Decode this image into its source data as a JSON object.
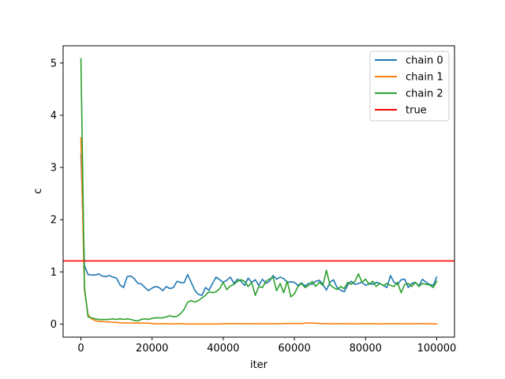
{
  "chart_data": {
    "type": "line",
    "xlabel": "iter",
    "ylabel": "c",
    "xlim": [
      -5000,
      105000
    ],
    "ylim": [
      -0.25,
      5.33
    ],
    "x_ticks": [
      0,
      20000,
      40000,
      60000,
      80000,
      100000
    ],
    "x_tick_labels": [
      "0",
      "20000",
      "40000",
      "60000",
      "80000",
      "100000"
    ],
    "y_ticks": [
      0,
      1,
      2,
      3,
      4,
      5
    ],
    "y_tick_labels": [
      "0",
      "1",
      "2",
      "3",
      "4",
      "5"
    ],
    "grid": false,
    "legend": {
      "position": "upper-right"
    },
    "x": [
      0,
      1000,
      2000,
      3000,
      4000,
      5000,
      6000,
      7000,
      8000,
      9000,
      10000,
      11000,
      12000,
      13000,
      14000,
      15000,
      16000,
      17000,
      18000,
      19000,
      20000,
      21000,
      22000,
      23000,
      24000,
      25000,
      26000,
      27000,
      28000,
      29000,
      30000,
      31000,
      32000,
      33000,
      34000,
      35000,
      36000,
      37000,
      38000,
      39000,
      40000,
      41000,
      42000,
      43000,
      44000,
      45000,
      46000,
      47000,
      48000,
      49000,
      50000,
      51000,
      52000,
      53000,
      54000,
      55000,
      56000,
      57000,
      58000,
      59000,
      60000,
      61000,
      62000,
      63000,
      64000,
      65000,
      66000,
      67000,
      68000,
      69000,
      70000,
      71000,
      72000,
      73000,
      74000,
      75000,
      76000,
      77000,
      78000,
      79000,
      80000,
      81000,
      82000,
      83000,
      84000,
      85000,
      86000,
      87000,
      88000,
      89000,
      90000,
      91000,
      92000,
      93000,
      94000,
      95000,
      96000,
      97000,
      98000,
      99000,
      100000
    ],
    "series": [
      {
        "name": "chain 0",
        "color": "#1f77b4",
        "values": [
          3.25,
          1.12,
          0.95,
          0.94,
          0.94,
          0.96,
          0.92,
          0.91,
          0.93,
          0.9,
          0.88,
          0.75,
          0.7,
          0.91,
          0.92,
          0.87,
          0.78,
          0.77,
          0.7,
          0.64,
          0.69,
          0.72,
          0.7,
          0.64,
          0.72,
          0.68,
          0.7,
          0.82,
          0.8,
          0.79,
          0.95,
          0.8,
          0.65,
          0.57,
          0.55,
          0.7,
          0.65,
          0.78,
          0.9,
          0.85,
          0.8,
          0.84,
          0.9,
          0.78,
          0.86,
          0.82,
          0.74,
          0.88,
          0.8,
          0.85,
          0.74,
          0.86,
          0.78,
          0.82,
          0.93,
          0.86,
          0.9,
          0.87,
          0.8,
          0.81,
          0.8,
          0.74,
          0.79,
          0.73,
          0.78,
          0.76,
          0.82,
          0.84,
          0.76,
          0.65,
          0.8,
          0.85,
          0.7,
          0.65,
          0.62,
          0.75,
          0.82,
          0.76,
          0.78,
          0.8,
          0.74,
          0.78,
          0.76,
          0.8,
          0.78,
          0.74,
          0.7,
          0.93,
          0.8,
          0.76,
          0.85,
          0.86,
          0.7,
          0.78,
          0.8,
          0.73,
          0.86,
          0.8,
          0.76,
          0.74,
          0.9
        ]
      },
      {
        "name": "chain 1",
        "color": "#ff7f0e",
        "values": [
          3.57,
          0.65,
          0.18,
          0.1,
          0.07,
          0.05,
          0.05,
          0.045,
          0.04,
          0.035,
          0.03,
          0.025,
          0.022,
          0.025,
          0.022,
          0.02,
          0.02,
          0.02,
          0.018,
          0.02,
          0.01,
          0.005,
          0.005,
          0.006,
          0.008,
          0.005,
          0.005,
          0.006,
          0.008,
          0.004,
          0.002,
          0.002,
          0.002,
          0.003,
          0.002,
          0.002,
          0.002,
          0.002,
          0.003,
          0.004,
          0.006,
          0.008,
          0.01,
          0.008,
          0.008,
          0.006,
          0.008,
          0.008,
          0.006,
          0.006,
          0.006,
          0.005,
          0.006,
          0.006,
          0.006,
          0.006,
          0.008,
          0.01,
          0.012,
          0.012,
          0.012,
          0.012,
          0.01,
          0.02,
          0.022,
          0.02,
          0.018,
          0.012,
          0.01,
          0.008,
          0.006,
          0.004,
          0.006,
          0.008,
          0.008,
          0.006,
          0.005,
          0.005,
          0.006,
          0.008,
          0.006,
          0.006,
          0.008,
          0.006,
          0.004,
          0.004,
          0.006,
          0.008,
          0.008,
          0.006,
          0.005,
          0.006,
          0.006,
          0.006,
          0.006,
          0.008,
          0.008,
          0.006,
          0.006,
          0.005,
          0.004
        ]
      },
      {
        "name": "chain 2",
        "color": "#2ca02c",
        "values": [
          5.08,
          0.7,
          0.14,
          0.12,
          0.1,
          0.09,
          0.09,
          0.09,
          0.09,
          0.1,
          0.09,
          0.1,
          0.09,
          0.1,
          0.09,
          0.07,
          0.06,
          0.09,
          0.1,
          0.09,
          0.11,
          0.12,
          0.12,
          0.12,
          0.14,
          0.16,
          0.14,
          0.15,
          0.2,
          0.28,
          0.42,
          0.45,
          0.42,
          0.45,
          0.5,
          0.55,
          0.62,
          0.6,
          0.62,
          0.68,
          0.8,
          0.66,
          0.73,
          0.76,
          0.82,
          0.85,
          0.82,
          0.72,
          0.8,
          0.55,
          0.72,
          0.7,
          0.82,
          0.86,
          0.9,
          0.64,
          0.78,
          0.6,
          0.82,
          0.52,
          0.58,
          0.72,
          0.78,
          0.7,
          0.74,
          0.82,
          0.72,
          0.8,
          0.74,
          1.03,
          0.75,
          0.7,
          0.66,
          0.72,
          0.68,
          0.8,
          0.76,
          0.82,
          0.96,
          0.8,
          0.86,
          0.76,
          0.82,
          0.72,
          0.78,
          0.74,
          0.78,
          0.74,
          0.72,
          0.8,
          0.6,
          0.76,
          0.78,
          0.72,
          0.8,
          0.72,
          0.78,
          0.76,
          0.75,
          0.7,
          0.82
        ]
      }
    ],
    "reference_lines": [
      {
        "name": "true",
        "color": "#ff0000",
        "y": 1.21
      }
    ]
  }
}
